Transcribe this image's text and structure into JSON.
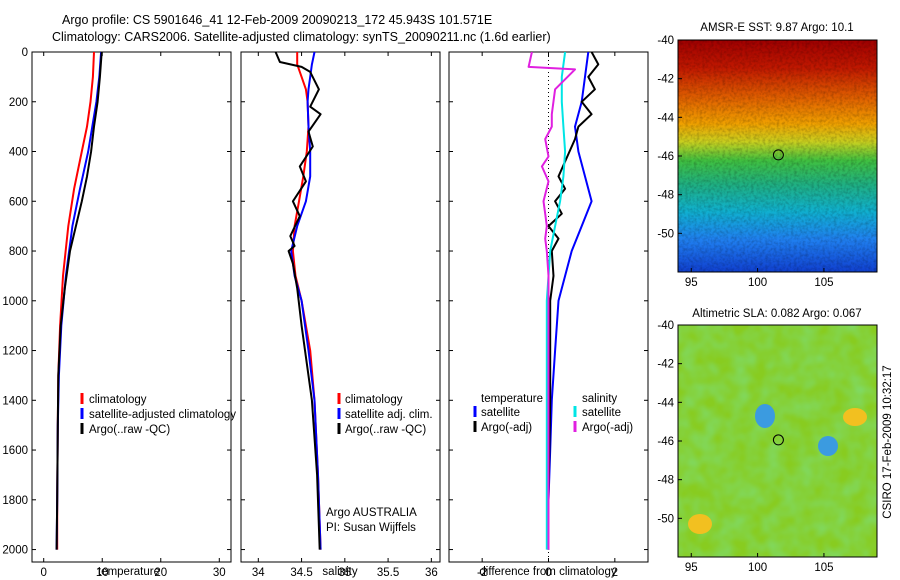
{
  "header": {
    "line1": "Argo profile: CS 5901646_41 12-Feb-2009 20090213_172 45.943S 101.571E",
    "line2": "Climatology: CARS2006. Satellite-adjusted climatology: synTS_20090211.nc (1.6d earlier)"
  },
  "colors": {
    "climatology": "#ff0000",
    "satellite": "#0000ff",
    "argo": "#000000",
    "salinity_diff": "#00e5e5",
    "argo_adj_sal": "#e020e0"
  },
  "chart_data": [
    {
      "type": "line",
      "id": "temperature",
      "xlabel": "temperature",
      "ylabel": "",
      "xlim": [
        -2,
        32
      ],
      "ylim": [
        2050,
        0
      ],
      "xticks": [
        0,
        10,
        20,
        30
      ],
      "yticks": [
        0,
        200,
        400,
        600,
        800,
        1000,
        1200,
        1400,
        1600,
        1800,
        2000
      ],
      "legend": {
        "placement": "lower-middle",
        "entries": [
          "climatology",
          "satellite-adjusted climatology",
          "Argo(..raw -QC)"
        ]
      },
      "series": [
        {
          "name": "climatology",
          "color": "#ff0000",
          "x": [
            8.6,
            8.4,
            8.0,
            7.4,
            6.5,
            5.2,
            4.2,
            3.3,
            2.8,
            2.5,
            2.4,
            2.3,
            2.3
          ],
          "y": [
            0,
            100,
            200,
            300,
            400,
            550,
            700,
            900,
            1100,
            1300,
            1500,
            1800,
            2000
          ]
        },
        {
          "name": "satellite-adjusted climatology",
          "color": "#0000ff",
          "x": [
            9.8,
            9.5,
            9.0,
            8.3,
            7.6,
            6.2,
            4.9,
            3.8,
            3.0,
            2.6,
            2.4,
            2.3,
            2.2
          ],
          "y": [
            0,
            100,
            200,
            300,
            400,
            550,
            700,
            900,
            1100,
            1300,
            1500,
            1800,
            2000
          ]
        },
        {
          "name": "Argo(..raw -QC)",
          "color": "#000000",
          "x": [
            9.9,
            9.6,
            9.2,
            8.6,
            8.1,
            7.4,
            6.5,
            5.5,
            4.5,
            3.6,
            2.9,
            2.5,
            2.4,
            2.3,
            2.2
          ],
          "y": [
            0,
            100,
            200,
            300,
            400,
            500,
            600,
            700,
            800,
            950,
            1100,
            1300,
            1500,
            1800,
            2000
          ]
        }
      ]
    },
    {
      "type": "line",
      "id": "salinity",
      "xlabel": "salinity",
      "ylabel": "",
      "xlim": [
        33.8,
        36.1
      ],
      "ylim": [
        2050,
        0
      ],
      "xticks": [
        34,
        34.5,
        35,
        35.5,
        36
      ],
      "yticks": [
        0,
        200,
        400,
        600,
        800,
        1000,
        1200,
        1400,
        1600,
        1800,
        2000
      ],
      "legend": {
        "placement": "lower-right",
        "entries": [
          "climatology",
          "satellite adj. clim.",
          "Argo(..raw -QC)"
        ]
      },
      "annotation": [
        "Argo AUSTRALIA",
        "PI: Susan Wijffels"
      ],
      "series": [
        {
          "name": "climatology",
          "color": "#ff0000",
          "x": [
            34.45,
            34.45,
            34.5,
            34.55,
            34.57,
            34.58,
            34.56,
            34.52,
            34.47,
            34.42,
            34.4,
            34.43,
            34.5,
            34.6,
            34.65,
            34.69,
            34.72
          ],
          "y": [
            0,
            50,
            100,
            150,
            200,
            300,
            400,
            500,
            600,
            700,
            800,
            900,
            1000,
            1200,
            1400,
            1700,
            2000
          ]
        },
        {
          "name": "satellite adj. clim.",
          "color": "#0000ff",
          "x": [
            34.65,
            34.62,
            34.6,
            34.58,
            34.57,
            34.58,
            34.6,
            34.6,
            34.55,
            34.45,
            34.38,
            34.42,
            34.5,
            34.58,
            34.65,
            34.69,
            34.72
          ],
          "y": [
            0,
            50,
            100,
            150,
            200,
            300,
            400,
            500,
            600,
            700,
            800,
            900,
            1000,
            1200,
            1400,
            1700,
            2000
          ]
        },
        {
          "name": "Argo(..raw -QC)",
          "color": "#000000",
          "x": [
            34.2,
            34.25,
            34.5,
            34.6,
            34.7,
            34.6,
            34.72,
            34.58,
            34.63,
            34.48,
            34.55,
            34.4,
            34.48,
            34.37,
            34.42,
            34.35,
            34.4,
            34.45,
            34.5,
            34.62,
            34.68,
            34.71
          ],
          "y": [
            0,
            40,
            60,
            80,
            150,
            220,
            250,
            320,
            380,
            460,
            520,
            600,
            660,
            740,
            780,
            800,
            850,
            950,
            1100,
            1400,
            1700,
            2000
          ]
        }
      ]
    },
    {
      "type": "line",
      "id": "difference",
      "xlabel": "difference from climatology",
      "ylabel": "",
      "xlim": [
        -3,
        3
      ],
      "ylim": [
        2050,
        0
      ],
      "xticks": [
        -2,
        0,
        2
      ],
      "yticks": [
        0,
        200,
        400,
        600,
        800,
        1000,
        1200,
        1400,
        1600,
        1800,
        2000
      ],
      "reference_line_x": 0,
      "legend": {
        "placement": "lower",
        "entries": [
          "temperature",
          "satellite",
          "Argo(-adj)",
          "salinity",
          "satellite",
          "Argo(-adj)"
        ]
      },
      "series": [
        {
          "name": "temperature satellite",
          "color": "#0000ff",
          "x": [
            1.2,
            1.1,
            1.0,
            0.8,
            0.9,
            1.1,
            1.3,
            1.0,
            0.7,
            0.5,
            0.3,
            0.2,
            0.1,
            0.05,
            0.0,
            0.0
          ],
          "y": [
            0,
            100,
            200,
            300,
            400,
            500,
            600,
            700,
            800,
            900,
            1000,
            1200,
            1400,
            1600,
            1800,
            2000
          ]
        },
        {
          "name": "temperature Argo(-adj)",
          "color": "#000000",
          "x": [
            1.3,
            1.5,
            1.2,
            1.4,
            1.0,
            1.3,
            0.9,
            0.8,
            0.3,
            0.5,
            0.2,
            0.4,
            0.0,
            0.3,
            0.1,
            0.15,
            0.05,
            0.05,
            0.0,
            0.0
          ],
          "y": [
            0,
            50,
            100,
            150,
            200,
            250,
            300,
            350,
            500,
            550,
            600,
            650,
            700,
            750,
            800,
            900,
            1000,
            1400,
            1800,
            2000
          ]
        },
        {
          "name": "salinity satellite",
          "color": "#00e5e5",
          "x": [
            0.5,
            0.4,
            0.4,
            0.45,
            0.5,
            0.45,
            0.35,
            0.2,
            0.05,
            0.0,
            -0.05,
            -0.05,
            -0.05,
            -0.05
          ],
          "y": [
            0,
            100,
            200,
            300,
            400,
            500,
            600,
            700,
            800,
            900,
            1000,
            1400,
            1800,
            2000
          ]
        },
        {
          "name": "salinity Argo(-adj)",
          "color": "#e020e0",
          "x": [
            -0.5,
            -0.6,
            0.8,
            0.2,
            0.1,
            0.1,
            -0.1,
            0.0,
            -0.2,
            0.0,
            -0.15,
            -0.1,
            -0.05,
            -0.1,
            -0.05,
            0.0,
            0.0,
            0.0
          ],
          "y": [
            0,
            60,
            70,
            150,
            250,
            300,
            350,
            420,
            460,
            520,
            600,
            650,
            700,
            750,
            800,
            900,
            1200,
            2000
          ]
        }
      ]
    },
    {
      "type": "heatmap",
      "id": "sst",
      "title": "AMSR-E SST: 9.87 Argo: 10.1",
      "xlim": [
        94,
        109
      ],
      "ylim": [
        -52,
        -40
      ],
      "xticks": [
        95,
        100,
        105
      ],
      "yticks": [
        -40,
        -42,
        -44,
        -46,
        -48,
        -50
      ],
      "marker": {
        "x": 101.571,
        "y": -45.943
      }
    },
    {
      "type": "heatmap",
      "id": "sla",
      "title": "Altimetric SLA: 0.082 Argo: 0.067",
      "xlim": [
        94,
        109
      ],
      "ylim": [
        -52,
        -40
      ],
      "xticks": [
        95,
        100,
        105
      ],
      "yticks": [
        -40,
        -42,
        -44,
        -46,
        -48,
        -50
      ],
      "marker": {
        "x": 101.571,
        "y": -45.943
      },
      "side_label": "CSIRO 17-Feb-2009 10:32:17"
    }
  ]
}
